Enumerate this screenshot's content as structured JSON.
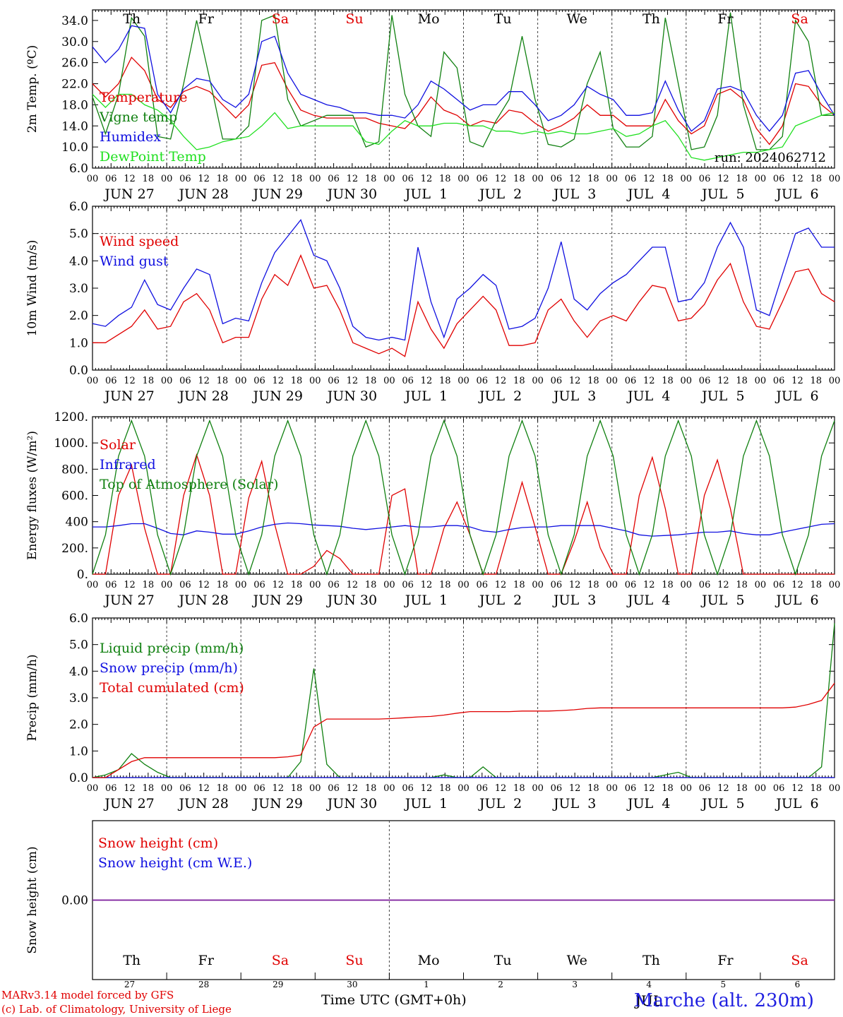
{
  "footer": {
    "credit_line1": "MARv3.14 model forced by GFS",
    "credit_line2": "(c) Lab. of Climatology, University of Liege",
    "x_axis_title": "Time UTC (GMT+0h)",
    "station": "Marche (alt. 230m)",
    "overlap_text": "JUL"
  },
  "colors": {
    "red": "#e00000",
    "green": "#108010",
    "blue": "#1010e0",
    "lightgreen": "#20e020",
    "purple": "#7a1a9a"
  },
  "chart_data": [
    {
      "type": "line",
      "ylabel": "2m Temp. (ºC)",
      "ylim": [
        6,
        36
      ],
      "yticks": [
        "6.0",
        "10.0",
        "14.0",
        "18.0",
        "22.0",
        "26.0",
        "30.0",
        "34.0"
      ],
      "ytick_values": [
        6,
        10,
        14,
        18,
        22,
        26,
        30,
        34
      ],
      "hour_ticks": [
        "00",
        "06",
        "12",
        "18"
      ],
      "date_labels": [
        "JUN 27",
        "JUN 28",
        "JUN 29",
        "JUN 30",
        "JUL  1",
        "JUL  2",
        "JUL  3",
        "JUL  4",
        "JUL  5",
        "JUL  6"
      ],
      "day_names": [
        "Th",
        "Fr",
        "Sa",
        "Su",
        "Mo",
        "Tu",
        "We",
        "Th",
        "Fr",
        "Sa"
      ],
      "day_name_colors": [
        "#000000",
        "#000000",
        "#e00000",
        "#e00000",
        "#000000",
        "#000000",
        "#000000",
        "#000000",
        "#000000",
        "#e00000"
      ],
      "annotation": "run: 2024062712",
      "x_hours_step": 6,
      "series": [
        {
          "name": "Temperature",
          "color": "#e00000",
          "values": [
            22,
            19.5,
            22,
            27,
            24.5,
            19,
            17.5,
            20.5,
            21.5,
            20.5,
            18,
            15.5,
            18,
            25.5,
            26,
            21,
            17,
            16,
            15.5,
            15.5,
            15.5,
            15.5,
            14.5,
            14,
            13.5,
            16,
            19.5,
            17,
            16,
            14,
            15,
            14.5,
            17,
            16.5,
            14.5,
            13,
            14,
            15.5,
            18,
            16,
            16,
            14,
            14,
            14,
            19,
            15,
            12.5,
            14,
            20,
            21,
            19,
            13.5,
            10.5,
            14,
            22,
            21.5,
            18,
            16
          ]
        },
        {
          "name": "Vigne temp",
          "color": "#108010",
          "values": [
            19.5,
            12.5,
            20,
            34.5,
            31,
            12,
            11.5,
            22,
            34,
            23,
            11.5,
            11.5,
            14,
            34,
            35,
            19,
            14,
            15,
            16,
            16,
            16,
            10,
            11,
            35,
            20,
            14,
            12,
            28,
            25,
            11,
            10,
            15,
            19,
            31,
            19,
            10.5,
            10,
            11.5,
            22,
            28,
            13.5,
            10,
            10,
            12,
            34.5,
            22,
            9.5,
            10,
            16,
            35.5,
            18,
            9.5,
            9.5,
            12,
            34,
            30,
            16,
            16
          ]
        },
        {
          "name": "Humidex",
          "color": "#1010e0",
          "values": [
            29,
            26,
            28.5,
            33,
            32.5,
            20,
            16.5,
            21,
            23,
            22.5,
            19,
            17.5,
            20,
            30,
            31,
            24,
            20,
            19,
            18,
            17.5,
            16.5,
            16.5,
            16,
            16,
            15.5,
            18,
            22.5,
            21,
            19,
            17,
            18,
            18,
            20.5,
            20.5,
            18,
            15,
            16,
            18,
            21.5,
            20,
            19,
            16,
            16,
            16.5,
            22.5,
            17,
            13,
            15,
            21,
            21.5,
            20.5,
            16,
            13,
            16,
            24,
            24.5,
            20,
            16
          ]
        },
        {
          "name": "DewPoint Temp",
          "color": "#20e020",
          "values": [
            20,
            17.5,
            20,
            20,
            18,
            17,
            15,
            12,
            9.5,
            10,
            11,
            11.5,
            12,
            14,
            16.5,
            13.5,
            14,
            14,
            14,
            14,
            14,
            11,
            10.5,
            13,
            15,
            14,
            14,
            14.5,
            14.5,
            14,
            14,
            13,
            13,
            12.5,
            13,
            12.5,
            13,
            12.5,
            12.5,
            13,
            13.5,
            12,
            12.5,
            14,
            15,
            12,
            8,
            7.5,
            8,
            8.5,
            9,
            9,
            9.5,
            10,
            14,
            15,
            16,
            16.5
          ]
        }
      ]
    },
    {
      "type": "line",
      "ylabel": "10m Wind (m/s)",
      "ylim": [
        0,
        6
      ],
      "yticks": [
        "0.0",
        "1.0",
        "2.0",
        "3.0",
        "4.0",
        "5.0",
        "6.0"
      ],
      "ytick_values": [
        0,
        1,
        2,
        3,
        4,
        5,
        6
      ],
      "hour_ticks": [
        "00",
        "06",
        "12",
        "18"
      ],
      "date_labels": [
        "JUN 27",
        "JUN 28",
        "JUN 29",
        "JUN 30",
        "JUL  1",
        "JUL  2",
        "JUL  3",
        "JUL  4",
        "JUL  5",
        "JUL  6"
      ],
      "reference_line": 5,
      "x_hours_step": 6,
      "series": [
        {
          "name": "Wind speed",
          "color": "#e00000",
          "values": [
            1,
            1,
            1.3,
            1.6,
            2.2,
            1.5,
            1.6,
            2.5,
            2.8,
            2.2,
            1,
            1.2,
            1.2,
            2.6,
            3.5,
            3.1,
            4.2,
            3,
            3.1,
            2.2,
            1,
            0.8,
            0.6,
            0.8,
            0.5,
            2.5,
            1.5,
            0.8,
            1.7,
            2.2,
            2.7,
            2.2,
            0.9,
            0.9,
            1,
            2.2,
            2.6,
            1.8,
            1.2,
            1.8,
            2,
            1.8,
            2.5,
            3.1,
            3,
            1.8,
            1.9,
            2.4,
            3.3,
            3.9,
            2.5,
            1.6,
            1.5,
            2.5,
            3.6,
            3.7,
            2.8,
            2.5
          ]
        },
        {
          "name": "Wind gust",
          "color": "#1010e0",
          "values": [
            1.7,
            1.6,
            2,
            2.3,
            3.3,
            2.4,
            2.2,
            3,
            3.7,
            3.5,
            1.7,
            1.9,
            1.8,
            3.2,
            4.3,
            4.9,
            5.5,
            4.2,
            4,
            3,
            1.6,
            1.2,
            1.1,
            1.2,
            1.1,
            4.5,
            2.5,
            1.2,
            2.6,
            3,
            3.5,
            3.1,
            1.5,
            1.6,
            1.9,
            3,
            4.7,
            2.6,
            2.2,
            2.8,
            3.2,
            3.5,
            4,
            4.5,
            4.5,
            2.5,
            2.6,
            3.2,
            4.5,
            5.4,
            4.5,
            2.2,
            2,
            3.5,
            5,
            5.2,
            4.5,
            4.5
          ]
        }
      ]
    },
    {
      "type": "line",
      "ylabel": "Energy fluxes (W/m²)",
      "ylim": [
        0,
        1200
      ],
      "yticks": [
        "0.",
        "200.",
        "400",
        "600.",
        "800.",
        "1000.",
        "1200."
      ],
      "ytick_values": [
        0,
        200,
        400,
        600,
        800,
        1000,
        1200
      ],
      "hour_ticks": [
        "00",
        "06",
        "12",
        "18"
      ],
      "date_labels": [
        "JUN 27",
        "JUN 28",
        "JUN 29",
        "JUN 30",
        "JUL  1",
        "JUL  2",
        "JUL  3",
        "JUL  4",
        "JUL  5",
        "JUL  6"
      ],
      "x_hours_step": 6,
      "series": [
        {
          "name": "Solar",
          "color": "#e00000",
          "values": [
            0,
            0,
            600,
            830,
            350,
            0,
            0,
            600,
            910,
            600,
            0,
            0,
            580,
            860,
            380,
            0,
            0,
            60,
            180,
            120,
            0,
            0,
            0,
            600,
            650,
            0,
            0,
            350,
            550,
            300,
            0,
            0,
            350,
            700,
            360,
            0,
            0,
            250,
            550,
            200,
            0,
            0,
            600,
            890,
            500,
            0,
            0,
            600,
            870,
            500,
            0,
            0,
            0,
            0,
            0,
            0,
            0,
            0
          ]
        },
        {
          "name": "Infrared",
          "color": "#1010e0",
          "values": [
            360,
            360,
            370,
            385,
            385,
            350,
            310,
            300,
            330,
            320,
            305,
            305,
            330,
            360,
            380,
            390,
            385,
            375,
            370,
            365,
            350,
            340,
            350,
            360,
            370,
            360,
            360,
            370,
            370,
            360,
            330,
            320,
            340,
            355,
            360,
            360,
            370,
            370,
            370,
            370,
            350,
            330,
            300,
            290,
            295,
            300,
            310,
            320,
            320,
            330,
            310,
            300,
            300,
            320,
            340,
            360,
            380,
            385
          ]
        },
        {
          "name": "Top of Atmosphere (Solar)",
          "color": "#108010",
          "values": [
            0,
            300,
            900,
            1170,
            900,
            300,
            0,
            300,
            900,
            1170,
            900,
            300,
            0,
            300,
            900,
            1170,
            900,
            300,
            0,
            300,
            900,
            1170,
            900,
            300,
            0,
            300,
            900,
            1170,
            900,
            300,
            0,
            300,
            900,
            1170,
            900,
            300,
            0,
            300,
            900,
            1170,
            900,
            300,
            0,
            300,
            900,
            1170,
            900,
            300,
            0,
            300,
            900,
            1170,
            900,
            300,
            0,
            300,
            900,
            1170
          ]
        }
      ]
    },
    {
      "type": "line",
      "ylabel": "Precip (mm/h)",
      "ylim": [
        0,
        6
      ],
      "yticks": [
        "0.0",
        "1.0",
        "2.0",
        "3.0",
        "4.0",
        "5.0",
        "6.0"
      ],
      "ytick_values": [
        0,
        1,
        2,
        3,
        4,
        5,
        6
      ],
      "hour_ticks": [
        "00",
        "06",
        "12",
        "18"
      ],
      "date_labels": [
        "JUN 27",
        "JUN 28",
        "JUN 29",
        "JUN 30",
        "JUL  1",
        "JUL  2",
        "JUL  3",
        "JUL  4",
        "JUL  5",
        "JUL  6"
      ],
      "x_hours_step": 6,
      "series": [
        {
          "name": "Liquid precip (mm/h)",
          "color": "#108010",
          "values": [
            0,
            0.1,
            0.3,
            0.9,
            0.5,
            0.2,
            0,
            0,
            0,
            0,
            0,
            0,
            0,
            0,
            0,
            0,
            0.6,
            4.1,
            0.5,
            0,
            0,
            0,
            0,
            0,
            0,
            0,
            0,
            0.1,
            0,
            0,
            0.4,
            0,
            0,
            0,
            0,
            0,
            0,
            0,
            0,
            0,
            0,
            0,
            0,
            0,
            0.1,
            0.2,
            0,
            0,
            0,
            0,
            0,
            0,
            0,
            0,
            0,
            0,
            0.4,
            5.8
          ]
        },
        {
          "name": "Snow precip (mm/h)",
          "color": "#1010e0",
          "values": [
            0,
            0,
            0,
            0,
            0,
            0,
            0,
            0,
            0,
            0,
            0,
            0,
            0,
            0,
            0,
            0,
            0,
            0,
            0,
            0,
            0,
            0,
            0,
            0,
            0,
            0,
            0,
            0,
            0,
            0,
            0,
            0,
            0,
            0,
            0,
            0,
            0,
            0,
            0,
            0,
            0,
            0,
            0,
            0,
            0,
            0,
            0,
            0,
            0,
            0,
            0,
            0,
            0,
            0,
            0,
            0,
            0,
            0
          ]
        },
        {
          "name": "Total cumulated (cm)",
          "color": "#e00000",
          "values": [
            0,
            0,
            0.3,
            0.6,
            0.75,
            0.75,
            0.75,
            0.75,
            0.75,
            0.75,
            0.75,
            0.75,
            0.75,
            0.75,
            0.75,
            0.78,
            0.85,
            1.9,
            2.2,
            2.2,
            2.2,
            2.2,
            2.2,
            2.22,
            2.25,
            2.28,
            2.3,
            2.35,
            2.42,
            2.48,
            2.48,
            2.48,
            2.48,
            2.5,
            2.5,
            2.5,
            2.52,
            2.55,
            2.6,
            2.62,
            2.62,
            2.62,
            2.62,
            2.62,
            2.62,
            2.62,
            2.62,
            2.62,
            2.62,
            2.62,
            2.62,
            2.62,
            2.62,
            2.62,
            2.65,
            2.75,
            2.9,
            3.55
          ]
        }
      ]
    },
    {
      "type": "line",
      "ylabel": "Snow height (cm)",
      "yticks": [
        "0.00"
      ],
      "ytick_values": [
        0
      ],
      "day_names": [
        "Th",
        "Fr",
        "Sa",
        "Su",
        "Mo",
        "Tu",
        "We",
        "Th",
        "Fr",
        "Sa"
      ],
      "day_name_colors": [
        "#000000",
        "#000000",
        "#e00000",
        "#e00000",
        "#000000",
        "#000000",
        "#000000",
        "#000000",
        "#000000",
        "#e00000"
      ],
      "day_numbers": [
        "27",
        "28",
        "29",
        "30",
        "1",
        "2",
        "3",
        "4",
        "5",
        "6"
      ],
      "series": [
        {
          "name": "Snow height (cm)",
          "color": "#e00000",
          "values": [
            0,
            0
          ]
        },
        {
          "name": "Snow height (cm W.E.)",
          "color": "#1010e0",
          "values": [
            0,
            0
          ]
        }
      ]
    }
  ]
}
